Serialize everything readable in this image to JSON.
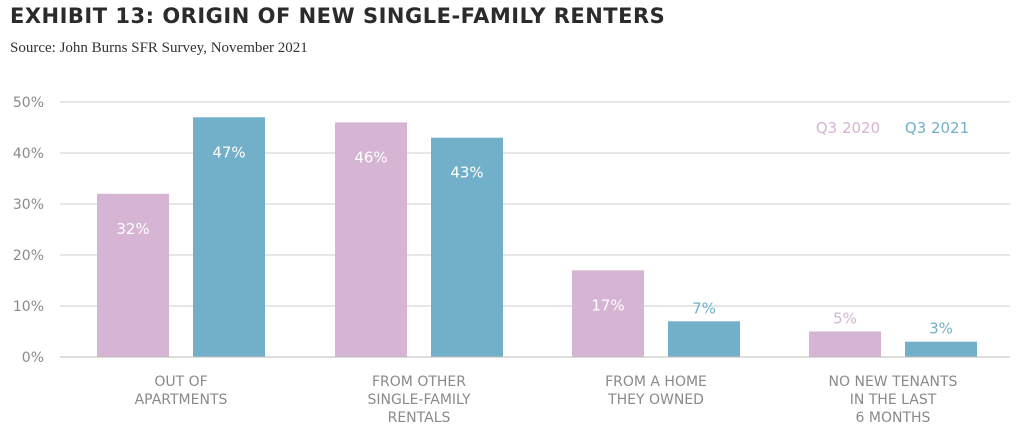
{
  "chart_data": {
    "type": "bar",
    "title": "EXHIBIT 13: ORIGIN OF NEW SINGLE-FAMILY RENTERS",
    "subtitle": "Source: John Burns SFR Survey, November 2021",
    "categories": [
      [
        "OUT OF",
        "APARTMENTS"
      ],
      [
        "FROM OTHER",
        "SINGLE-FAMILY",
        "RENTALS"
      ],
      [
        "FROM A HOME",
        "THEY OWNED"
      ],
      [
        "NO NEW TENANTS",
        "IN THE LAST",
        "6 MONTHS"
      ]
    ],
    "series": [
      {
        "name": "Q3 2020",
        "values": [
          32,
          46,
          17,
          5
        ],
        "labels": [
          "32%",
          "46%",
          "17%",
          "5%"
        ],
        "color": "#d6b4d3"
      },
      {
        "name": "Q3 2021",
        "values": [
          47,
          43,
          7,
          3
        ],
        "labels": [
          "47%",
          "43%",
          "7%",
          "3%"
        ],
        "color": "#72b0ca"
      }
    ],
    "ylim": [
      0,
      50
    ],
    "yticks": [
      "0%",
      "10%",
      "20%",
      "30%",
      "40%",
      "50%"
    ],
    "grid": true,
    "legend": "top-right"
  }
}
